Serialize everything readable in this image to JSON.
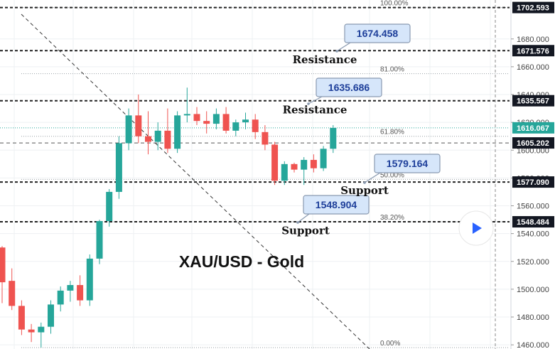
{
  "chart_data": {
    "type": "candlestick",
    "title": "XAU/USD - Gold",
    "ylim": [
      1457,
      1708
    ],
    "y_ticks": [
      "1680.000",
      "1660.000",
      "1640.000",
      "1620.000",
      "1600.000",
      "1580.000",
      "1560.000",
      "1540.000",
      "1520.000",
      "1500.000",
      "1480.000",
      "1460.000"
    ],
    "price_badges": [
      {
        "value": "1702.593",
        "price": 1702.593,
        "style": "dark"
      },
      {
        "value": "1671.576",
        "price": 1671.576,
        "style": "dark"
      },
      {
        "value": "1635.567",
        "price": 1635.567,
        "style": "dark"
      },
      {
        "value": "1616.067",
        "price": 1616.067,
        "style": "teal"
      },
      {
        "value": "1605.202",
        "price": 1605.202,
        "style": "dark"
      },
      {
        "value": "1577.090",
        "price": 1577.09,
        "style": "dark"
      },
      {
        "value": "1548.484",
        "price": 1548.484,
        "style": "dark"
      }
    ],
    "fib_levels": [
      {
        "label": "100.00%",
        "price": 1702.593
      },
      {
        "label": "81.00%",
        "price": 1655
      },
      {
        "label": "61.80%",
        "price": 1610
      },
      {
        "label": "50.00%",
        "price": 1579
      },
      {
        "label": "38.20%",
        "price": 1548.484
      },
      {
        "label": "0.00%",
        "price": 1458
      }
    ],
    "levels": [
      {
        "price": 1702.593,
        "kind": "top"
      },
      {
        "price": 1671.576,
        "kind": "resistance"
      },
      {
        "price": 1635.567,
        "kind": "resistance"
      },
      {
        "price": 1577.09,
        "kind": "support"
      },
      {
        "price": 1548.484,
        "kind": "support"
      }
    ],
    "annotations": [
      {
        "text": "Resistance",
        "price": 1665
      },
      {
        "text": "Resistance",
        "price": 1629
      },
      {
        "text": "Support",
        "price": 1571
      },
      {
        "text": "Support",
        "price": 1542
      }
    ],
    "callouts": [
      {
        "text": "1674.458",
        "price": 1674.458
      },
      {
        "text": "1635.686",
        "price": 1635.686
      },
      {
        "text": "1579.164",
        "price": 1579.164
      },
      {
        "text": "1548.904",
        "price": 1548.904
      }
    ],
    "candles": [
      {
        "o": 1530,
        "h": 1531,
        "l": 1490,
        "c": 1505
      },
      {
        "o": 1506,
        "h": 1515,
        "l": 1485,
        "c": 1488
      },
      {
        "o": 1488,
        "h": 1492,
        "l": 1467,
        "c": 1471
      },
      {
        "o": 1471,
        "h": 1475,
        "l": 1462,
        "c": 1469
      },
      {
        "o": 1469,
        "h": 1476,
        "l": 1458,
        "c": 1473
      },
      {
        "o": 1473,
        "h": 1492,
        "l": 1468,
        "c": 1489
      },
      {
        "o": 1489,
        "h": 1502,
        "l": 1484,
        "c": 1499
      },
      {
        "o": 1499,
        "h": 1506,
        "l": 1491,
        "c": 1503
      },
      {
        "o": 1503,
        "h": 1510,
        "l": 1488,
        "c": 1492
      },
      {
        "o": 1492,
        "h": 1525,
        "l": 1488,
        "c": 1522
      },
      {
        "o": 1522,
        "h": 1550,
        "l": 1518,
        "c": 1549
      },
      {
        "o": 1549,
        "h": 1572,
        "l": 1545,
        "c": 1570
      },
      {
        "o": 1570,
        "h": 1610,
        "l": 1565,
        "c": 1605
      },
      {
        "o": 1605,
        "h": 1630,
        "l": 1600,
        "c": 1625
      },
      {
        "o": 1625,
        "h": 1640,
        "l": 1605,
        "c": 1610
      },
      {
        "o": 1610,
        "h": 1628,
        "l": 1597,
        "c": 1606
      },
      {
        "o": 1606,
        "h": 1620,
        "l": 1600,
        "c": 1614
      },
      {
        "o": 1614,
        "h": 1630,
        "l": 1598,
        "c": 1601
      },
      {
        "o": 1601,
        "h": 1628,
        "l": 1598,
        "c": 1625
      },
      {
        "o": 1625,
        "h": 1645,
        "l": 1620,
        "c": 1626
      },
      {
        "o": 1626,
        "h": 1631,
        "l": 1618,
        "c": 1621
      },
      {
        "o": 1621,
        "h": 1628,
        "l": 1612,
        "c": 1619
      },
      {
        "o": 1619,
        "h": 1630,
        "l": 1615,
        "c": 1626
      },
      {
        "o": 1626,
        "h": 1631,
        "l": 1612,
        "c": 1614
      },
      {
        "o": 1614,
        "h": 1622,
        "l": 1610,
        "c": 1620
      },
      {
        "o": 1620,
        "h": 1627,
        "l": 1615,
        "c": 1622
      },
      {
        "o": 1622,
        "h": 1626,
        "l": 1608,
        "c": 1613
      },
      {
        "o": 1613,
        "h": 1618,
        "l": 1600,
        "c": 1604
      },
      {
        "o": 1604,
        "h": 1606,
        "l": 1575,
        "c": 1578
      },
      {
        "o": 1578,
        "h": 1592,
        "l": 1575,
        "c": 1590
      },
      {
        "o": 1590,
        "h": 1591,
        "l": 1584,
        "c": 1586
      },
      {
        "o": 1586,
        "h": 1595,
        "l": 1575,
        "c": 1593
      },
      {
        "o": 1593,
        "h": 1597,
        "l": 1584,
        "c": 1587
      },
      {
        "o": 1587,
        "h": 1603,
        "l": 1585,
        "c": 1601
      },
      {
        "o": 1601,
        "h": 1618,
        "l": 1598,
        "c": 1616
      }
    ],
    "colors": {
      "up": "#26a69a",
      "down": "#ef5350",
      "badge_dark": "#131722",
      "badge_teal": "#26a69a",
      "callout_bg": "#d6e6fa",
      "callout_border": "#8a9ab0"
    }
  },
  "controls": {
    "play_icon": "play-icon"
  }
}
